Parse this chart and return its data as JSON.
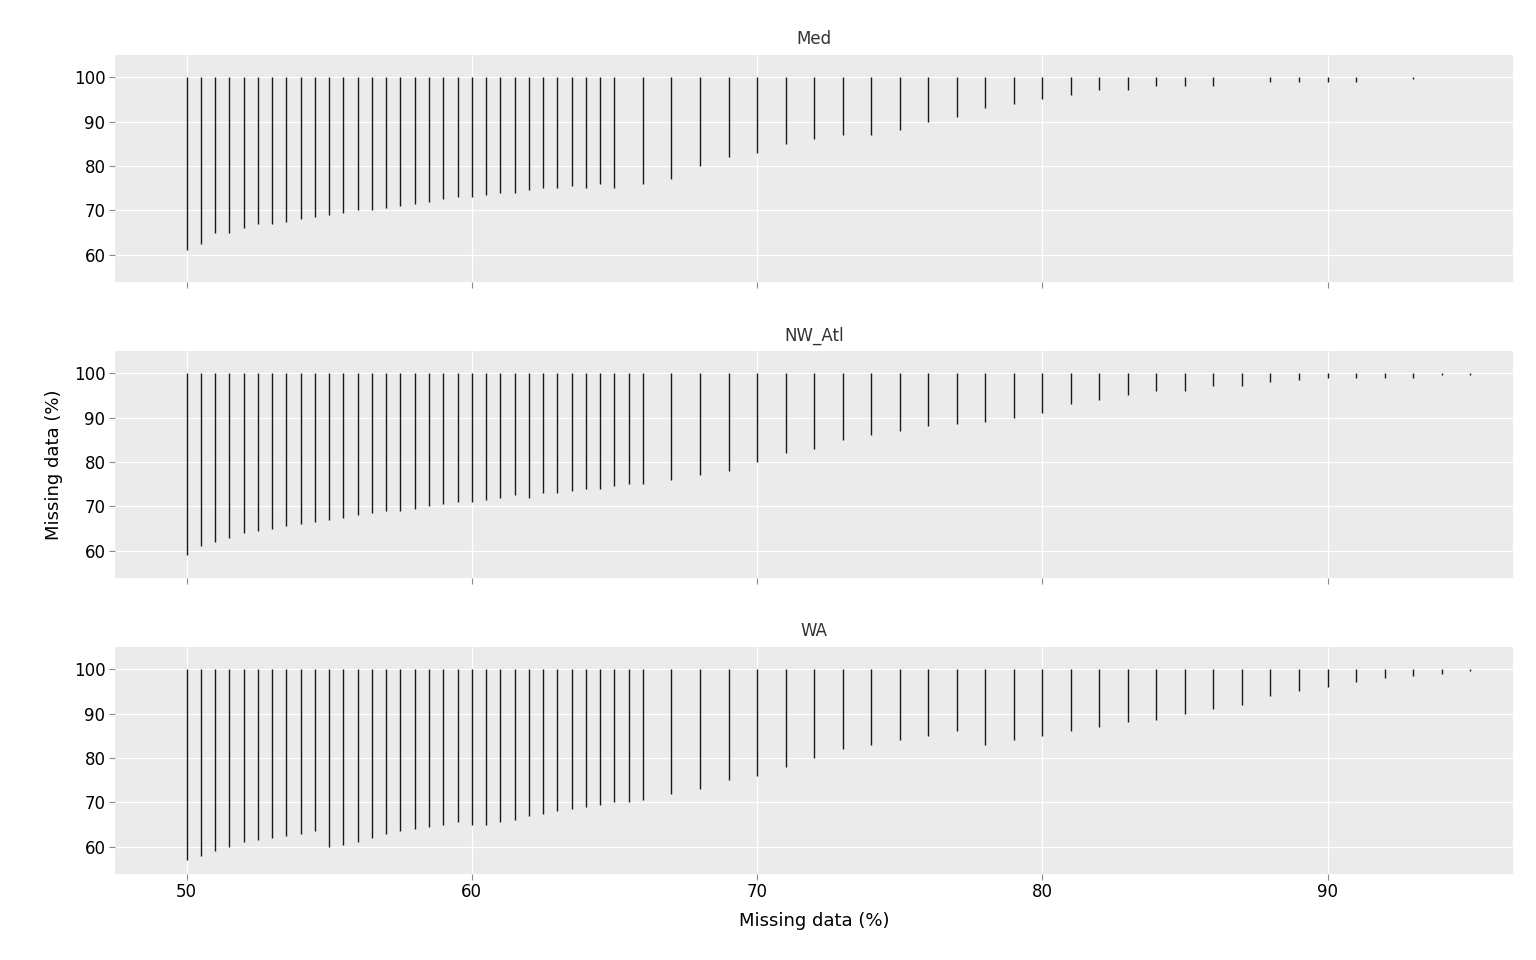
{
  "panels": [
    "Med",
    "NW_Atl",
    "WA"
  ],
  "xlabel": "Missing data (%)",
  "ylabel": "Missing data (%)",
  "xlim": [
    47.5,
    96.5
  ],
  "ylim": [
    54,
    105
  ],
  "xticks": [
    50,
    60,
    70,
    80,
    90
  ],
  "yticks": [
    60,
    70,
    80,
    90,
    100
  ],
  "fig_bg": "#ffffff",
  "panel_bg": "#ebebeb",
  "strip_bg": "#d3d3d3",
  "grid_color": "#ffffff",
  "seg_color": "#1a1a1a",
  "Med": {
    "x": [
      50.0,
      50.5,
      51.0,
      51.5,
      52.0,
      52.5,
      53.0,
      53.5,
      54.0,
      54.5,
      55.0,
      55.5,
      56.0,
      56.5,
      57.0,
      57.5,
      58.0,
      58.5,
      59.0,
      59.5,
      60.0,
      60.5,
      61.0,
      61.5,
      62.0,
      62.5,
      63.0,
      63.5,
      64.0,
      64.5,
      65.0,
      66.0,
      67.0,
      68.0,
      69.0,
      70.0,
      71.0,
      72.0,
      73.0,
      74.0,
      75.0,
      76.0,
      77.0,
      78.0,
      79.0,
      80.0,
      81.0,
      82.0,
      83.0,
      84.0,
      85.0,
      86.0,
      88.0,
      89.0,
      90.0,
      91.0,
      93.0
    ],
    "ymin": [
      61.0,
      62.5,
      65.0,
      65.0,
      66.0,
      67.0,
      67.0,
      67.5,
      68.0,
      68.5,
      69.0,
      69.5,
      70.0,
      70.0,
      70.5,
      71.0,
      71.5,
      72.0,
      72.5,
      73.0,
      73.0,
      73.5,
      74.0,
      74.0,
      74.5,
      75.0,
      75.0,
      75.5,
      75.0,
      76.0,
      75.0,
      76.0,
      77.0,
      80.0,
      82.0,
      83.0,
      85.0,
      86.0,
      87.0,
      87.0,
      88.0,
      90.0,
      91.0,
      93.0,
      94.0,
      95.0,
      96.0,
      97.0,
      97.0,
      98.0,
      98.0,
      98.0,
      99.0,
      99.0,
      99.0,
      99.0,
      99.5
    ],
    "ymax": [
      100,
      100,
      100,
      100,
      100,
      100,
      100,
      100,
      100,
      100,
      100,
      100,
      100,
      100,
      100,
      100,
      100,
      100,
      100,
      100,
      100,
      100,
      100,
      100,
      100,
      100,
      100,
      100,
      100,
      100,
      100,
      100,
      100,
      100,
      100,
      100,
      100,
      100,
      100,
      100,
      100,
      100,
      100,
      100,
      100,
      100,
      100,
      100,
      100,
      100,
      100,
      100,
      100,
      100,
      100,
      100,
      100
    ]
  },
  "NW_Atl": {
    "x": [
      50.0,
      50.5,
      51.0,
      51.5,
      52.0,
      52.5,
      53.0,
      53.5,
      54.0,
      54.5,
      55.0,
      55.5,
      56.0,
      56.5,
      57.0,
      57.5,
      58.0,
      58.5,
      59.0,
      59.5,
      60.0,
      60.5,
      61.0,
      61.5,
      62.0,
      62.5,
      63.0,
      63.5,
      64.0,
      64.5,
      65.0,
      65.5,
      66.0,
      67.0,
      68.0,
      69.0,
      70.0,
      71.0,
      72.0,
      73.0,
      74.0,
      75.0,
      76.0,
      77.0,
      78.0,
      79.0,
      80.0,
      81.0,
      82.0,
      83.0,
      84.0,
      85.0,
      86.0,
      87.0,
      88.0,
      89.0,
      90.0,
      91.0,
      92.0,
      93.0,
      94.0,
      95.0
    ],
    "ymin": [
      59.0,
      61.0,
      62.0,
      63.0,
      64.0,
      64.5,
      65.0,
      65.5,
      66.0,
      66.5,
      67.0,
      67.5,
      68.0,
      68.5,
      69.0,
      69.0,
      69.5,
      70.0,
      70.5,
      71.0,
      71.0,
      71.5,
      72.0,
      72.5,
      72.0,
      73.0,
      73.0,
      73.5,
      74.0,
      74.0,
      74.5,
      75.0,
      75.0,
      76.0,
      77.0,
      78.0,
      80.0,
      82.0,
      83.0,
      85.0,
      86.0,
      87.0,
      88.0,
      88.5,
      89.0,
      90.0,
      91.0,
      93.0,
      94.0,
      95.0,
      96.0,
      96.0,
      97.0,
      97.0,
      98.0,
      98.5,
      99.0,
      99.0,
      99.0,
      99.0,
      99.5,
      99.5
    ],
    "ymax": [
      100,
      100,
      100,
      100,
      100,
      100,
      100,
      100,
      100,
      100,
      100,
      100,
      100,
      100,
      100,
      100,
      100,
      100,
      100,
      100,
      100,
      100,
      100,
      100,
      100,
      100,
      100,
      100,
      100,
      100,
      100,
      100,
      100,
      100,
      100,
      100,
      100,
      100,
      100,
      100,
      100,
      100,
      100,
      100,
      100,
      100,
      100,
      100,
      100,
      100,
      100,
      100,
      100,
      100,
      100,
      100,
      100,
      100,
      100,
      100,
      100,
      100
    ]
  },
  "WA": {
    "x": [
      50.0,
      50.5,
      51.0,
      51.5,
      52.0,
      52.5,
      53.0,
      53.5,
      54.0,
      54.5,
      55.0,
      55.5,
      56.0,
      56.5,
      57.0,
      57.5,
      58.0,
      58.5,
      59.0,
      59.5,
      60.0,
      60.5,
      61.0,
      61.5,
      62.0,
      62.5,
      63.0,
      63.5,
      64.0,
      64.5,
      65.0,
      65.5,
      66.0,
      67.0,
      68.0,
      69.0,
      70.0,
      71.0,
      72.0,
      73.0,
      74.0,
      75.0,
      76.0,
      77.0,
      78.0,
      79.0,
      80.0,
      81.0,
      82.0,
      83.0,
      84.0,
      85.0,
      86.0,
      87.0,
      88.0,
      89.0,
      90.0,
      91.0,
      92.0,
      93.0,
      94.0,
      95.0
    ],
    "ymin": [
      57.0,
      58.0,
      59.0,
      60.0,
      61.0,
      61.5,
      62.0,
      62.5,
      63.0,
      63.5,
      60.0,
      60.5,
      61.0,
      62.0,
      63.0,
      63.5,
      64.0,
      64.5,
      65.0,
      65.5,
      65.0,
      65.0,
      65.5,
      66.0,
      67.0,
      67.5,
      68.0,
      68.5,
      69.0,
      69.5,
      70.0,
      70.0,
      70.5,
      72.0,
      73.0,
      75.0,
      76.0,
      78.0,
      80.0,
      82.0,
      83.0,
      84.0,
      85.0,
      86.0,
      83.0,
      84.0,
      85.0,
      86.0,
      87.0,
      88.0,
      88.5,
      90.0,
      91.0,
      92.0,
      94.0,
      95.0,
      96.0,
      97.0,
      98.0,
      98.5,
      99.0,
      99.5
    ],
    "ymax": [
      100,
      100,
      100,
      100,
      100,
      100,
      100,
      100,
      100,
      100,
      100,
      100,
      100,
      100,
      100,
      100,
      100,
      100,
      100,
      100,
      100,
      100,
      100,
      100,
      100,
      100,
      100,
      100,
      100,
      100,
      100,
      100,
      100,
      100,
      100,
      100,
      100,
      100,
      100,
      100,
      100,
      100,
      100,
      100,
      100,
      100,
      100,
      100,
      100,
      100,
      100,
      100,
      100,
      100,
      100,
      100,
      100,
      100,
      100,
      100,
      100,
      100
    ]
  }
}
